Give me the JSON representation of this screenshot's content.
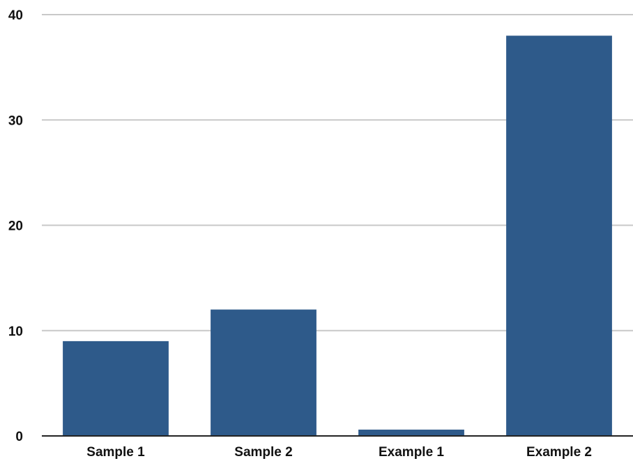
{
  "chart_data": {
    "type": "bar",
    "categories": [
      "Sample 1",
      "Sample 2",
      "Example 1",
      "Example 2"
    ],
    "values": [
      9,
      12,
      0.6,
      38
    ],
    "title": "",
    "xlabel": "",
    "ylabel": "",
    "ylim": [
      0,
      40
    ],
    "yticks": [
      "0",
      "10",
      "20",
      "30",
      "40"
    ],
    "grid": true,
    "bar_color": "#2e5a8a",
    "grid_color": "#c8c8c8"
  }
}
